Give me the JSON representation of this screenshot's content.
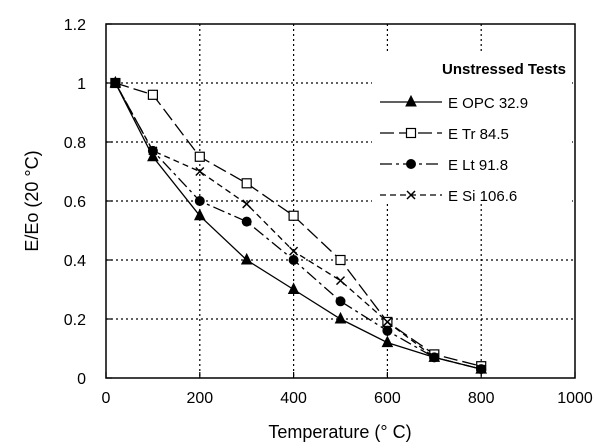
{
  "chart_data": {
    "type": "line",
    "xlabel": "Temperature (° C)",
    "ylabel": "E/Eo (20 °C)",
    "xlim": [
      0,
      1000
    ],
    "ylim": [
      0,
      1.2
    ],
    "x_ticks": [
      "0",
      "200",
      "400",
      "600",
      "800",
      "1000"
    ],
    "y_ticks": [
      "0",
      "0.2",
      "0.4",
      "0.6",
      "0.8",
      "1",
      "1.2"
    ],
    "grid": true,
    "legend_title": "Unstressed Tests",
    "legend_position": "top-right",
    "series": [
      {
        "name": "E OPC 32.9",
        "marker": "triangle",
        "dash": "solid",
        "x": [
          20,
          100,
          200,
          300,
          400,
          500,
          600,
          700,
          800
        ],
        "y": [
          1.0,
          0.75,
          0.55,
          0.4,
          0.3,
          0.2,
          0.12,
          0.07,
          0.03
        ]
      },
      {
        "name": "E Tr 84.5",
        "marker": "open-square",
        "dash": "long-dash",
        "x": [
          20,
          100,
          200,
          300,
          400,
          500,
          600,
          700,
          800
        ],
        "y": [
          1.0,
          0.96,
          0.75,
          0.66,
          0.55,
          0.4,
          0.19,
          0.08,
          0.04
        ]
      },
      {
        "name": "E Lt 91.8",
        "marker": "filled-circle",
        "dash": "dash-dot",
        "x": [
          20,
          100,
          200,
          300,
          400,
          500,
          600,
          700,
          800
        ],
        "y": [
          1.0,
          0.77,
          0.6,
          0.53,
          0.4,
          0.26,
          0.16,
          0.07,
          0.03
        ]
      },
      {
        "name": "E Si 106.6",
        "marker": "cross",
        "dash": "short-dash",
        "x": [
          20,
          100,
          200,
          300,
          400,
          500,
          600,
          700,
          800
        ],
        "y": [
          1.0,
          0.77,
          0.7,
          0.59,
          0.43,
          0.33,
          0.19,
          0.07,
          0.03
        ]
      }
    ]
  }
}
